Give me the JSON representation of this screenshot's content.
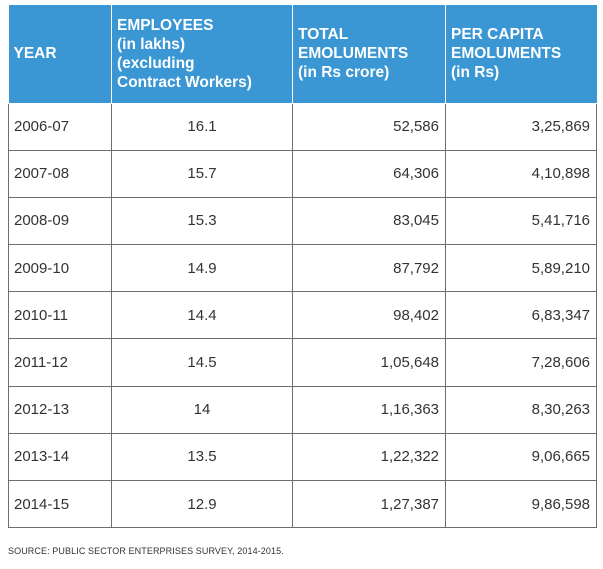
{
  "chart_data": {
    "type": "table",
    "columns": [
      [
        "YEAR"
      ],
      [
        "EMPLOYEES",
        "(in lakhs)",
        "(excluding",
        "Contract Workers)"
      ],
      [
        "TOTAL",
        "EMOLUMENTS",
        "(in Rs crore)"
      ],
      [
        "PER CAPITA",
        "EMOLUMENTS",
        "(in Rs)"
      ]
    ],
    "rows": [
      [
        "2006-07",
        "16.1",
        "52,586",
        "3,25,869"
      ],
      [
        "2007-08",
        "15.7",
        "64,306",
        "4,10,898"
      ],
      [
        "2008-09",
        "15.3",
        "83,045",
        "5,41,716"
      ],
      [
        "2009-10",
        "14.9",
        "87,792",
        "5,89,210"
      ],
      [
        "2010-11",
        "14.4",
        "98,402",
        "6,83,347"
      ],
      [
        "2011-12",
        "14.5",
        "1,05,648",
        "7,28,606"
      ],
      [
        "2012-13",
        "14",
        "1,16,363",
        "8,30,263"
      ],
      [
        "2013-14",
        "13.5",
        "1,22,322",
        "9,06,665"
      ],
      [
        "2014-15",
        "12.9",
        "1,27,387",
        "9,86,598"
      ]
    ],
    "source": "SOURCE: PUBLIC SECTOR ENTERPRISES SURVEY, 2014-2015."
  },
  "colors": {
    "header_bg": "#3a97d4",
    "header_text": "#ffffff",
    "border": "#6e6e6e",
    "cell_text": "#333333"
  }
}
